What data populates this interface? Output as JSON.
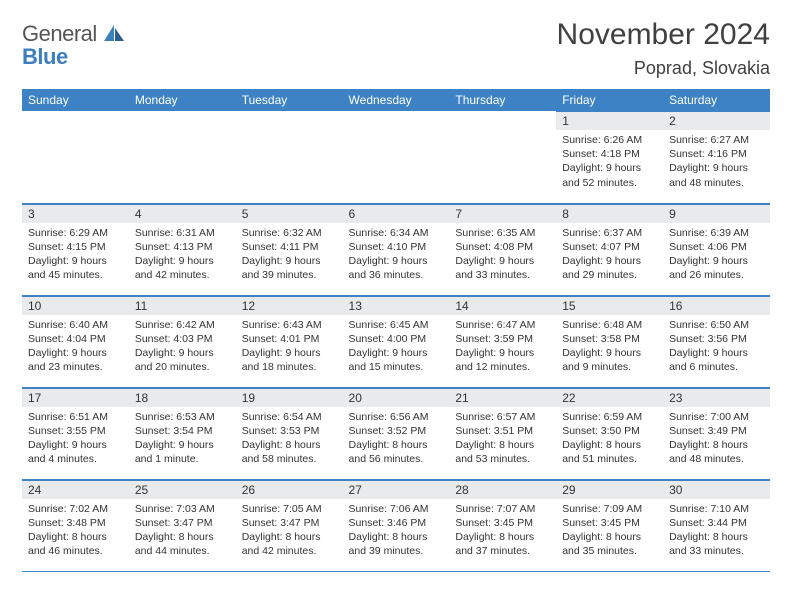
{
  "logo": {
    "line1": "General",
    "line2": "Blue"
  },
  "title": "November 2024",
  "location": "Poprad, Slovakia",
  "colors": {
    "header_bg": "#3c82c4",
    "header_text": "#ffffff",
    "daynum_bg": "#e8eaec",
    "border": "#3c82c4",
    "body_text": "#333333",
    "logo_gray": "#555555",
    "logo_blue": "#3b7fbf"
  },
  "day_headers": [
    "Sunday",
    "Monday",
    "Tuesday",
    "Wednesday",
    "Thursday",
    "Friday",
    "Saturday"
  ],
  "weeks": [
    [
      null,
      null,
      null,
      null,
      null,
      {
        "n": "1",
        "sunrise": "Sunrise: 6:26 AM",
        "sunset": "Sunset: 4:18 PM",
        "daylight": "Daylight: 9 hours and 52 minutes."
      },
      {
        "n": "2",
        "sunrise": "Sunrise: 6:27 AM",
        "sunset": "Sunset: 4:16 PM",
        "daylight": "Daylight: 9 hours and 48 minutes."
      }
    ],
    [
      {
        "n": "3",
        "sunrise": "Sunrise: 6:29 AM",
        "sunset": "Sunset: 4:15 PM",
        "daylight": "Daylight: 9 hours and 45 minutes."
      },
      {
        "n": "4",
        "sunrise": "Sunrise: 6:31 AM",
        "sunset": "Sunset: 4:13 PM",
        "daylight": "Daylight: 9 hours and 42 minutes."
      },
      {
        "n": "5",
        "sunrise": "Sunrise: 6:32 AM",
        "sunset": "Sunset: 4:11 PM",
        "daylight": "Daylight: 9 hours and 39 minutes."
      },
      {
        "n": "6",
        "sunrise": "Sunrise: 6:34 AM",
        "sunset": "Sunset: 4:10 PM",
        "daylight": "Daylight: 9 hours and 36 minutes."
      },
      {
        "n": "7",
        "sunrise": "Sunrise: 6:35 AM",
        "sunset": "Sunset: 4:08 PM",
        "daylight": "Daylight: 9 hours and 33 minutes."
      },
      {
        "n": "8",
        "sunrise": "Sunrise: 6:37 AM",
        "sunset": "Sunset: 4:07 PM",
        "daylight": "Daylight: 9 hours and 29 minutes."
      },
      {
        "n": "9",
        "sunrise": "Sunrise: 6:39 AM",
        "sunset": "Sunset: 4:06 PM",
        "daylight": "Daylight: 9 hours and 26 minutes."
      }
    ],
    [
      {
        "n": "10",
        "sunrise": "Sunrise: 6:40 AM",
        "sunset": "Sunset: 4:04 PM",
        "daylight": "Daylight: 9 hours and 23 minutes."
      },
      {
        "n": "11",
        "sunrise": "Sunrise: 6:42 AM",
        "sunset": "Sunset: 4:03 PM",
        "daylight": "Daylight: 9 hours and 20 minutes."
      },
      {
        "n": "12",
        "sunrise": "Sunrise: 6:43 AM",
        "sunset": "Sunset: 4:01 PM",
        "daylight": "Daylight: 9 hours and 18 minutes."
      },
      {
        "n": "13",
        "sunrise": "Sunrise: 6:45 AM",
        "sunset": "Sunset: 4:00 PM",
        "daylight": "Daylight: 9 hours and 15 minutes."
      },
      {
        "n": "14",
        "sunrise": "Sunrise: 6:47 AM",
        "sunset": "Sunset: 3:59 PM",
        "daylight": "Daylight: 9 hours and 12 minutes."
      },
      {
        "n": "15",
        "sunrise": "Sunrise: 6:48 AM",
        "sunset": "Sunset: 3:58 PM",
        "daylight": "Daylight: 9 hours and 9 minutes."
      },
      {
        "n": "16",
        "sunrise": "Sunrise: 6:50 AM",
        "sunset": "Sunset: 3:56 PM",
        "daylight": "Daylight: 9 hours and 6 minutes."
      }
    ],
    [
      {
        "n": "17",
        "sunrise": "Sunrise: 6:51 AM",
        "sunset": "Sunset: 3:55 PM",
        "daylight": "Daylight: 9 hours and 4 minutes."
      },
      {
        "n": "18",
        "sunrise": "Sunrise: 6:53 AM",
        "sunset": "Sunset: 3:54 PM",
        "daylight": "Daylight: 9 hours and 1 minute."
      },
      {
        "n": "19",
        "sunrise": "Sunrise: 6:54 AM",
        "sunset": "Sunset: 3:53 PM",
        "daylight": "Daylight: 8 hours and 58 minutes."
      },
      {
        "n": "20",
        "sunrise": "Sunrise: 6:56 AM",
        "sunset": "Sunset: 3:52 PM",
        "daylight": "Daylight: 8 hours and 56 minutes."
      },
      {
        "n": "21",
        "sunrise": "Sunrise: 6:57 AM",
        "sunset": "Sunset: 3:51 PM",
        "daylight": "Daylight: 8 hours and 53 minutes."
      },
      {
        "n": "22",
        "sunrise": "Sunrise: 6:59 AM",
        "sunset": "Sunset: 3:50 PM",
        "daylight": "Daylight: 8 hours and 51 minutes."
      },
      {
        "n": "23",
        "sunrise": "Sunrise: 7:00 AM",
        "sunset": "Sunset: 3:49 PM",
        "daylight": "Daylight: 8 hours and 48 minutes."
      }
    ],
    [
      {
        "n": "24",
        "sunrise": "Sunrise: 7:02 AM",
        "sunset": "Sunset: 3:48 PM",
        "daylight": "Daylight: 8 hours and 46 minutes."
      },
      {
        "n": "25",
        "sunrise": "Sunrise: 7:03 AM",
        "sunset": "Sunset: 3:47 PM",
        "daylight": "Daylight: 8 hours and 44 minutes."
      },
      {
        "n": "26",
        "sunrise": "Sunrise: 7:05 AM",
        "sunset": "Sunset: 3:47 PM",
        "daylight": "Daylight: 8 hours and 42 minutes."
      },
      {
        "n": "27",
        "sunrise": "Sunrise: 7:06 AM",
        "sunset": "Sunset: 3:46 PM",
        "daylight": "Daylight: 8 hours and 39 minutes."
      },
      {
        "n": "28",
        "sunrise": "Sunrise: 7:07 AM",
        "sunset": "Sunset: 3:45 PM",
        "daylight": "Daylight: 8 hours and 37 minutes."
      },
      {
        "n": "29",
        "sunrise": "Sunrise: 7:09 AM",
        "sunset": "Sunset: 3:45 PM",
        "daylight": "Daylight: 8 hours and 35 minutes."
      },
      {
        "n": "30",
        "sunrise": "Sunrise: 7:10 AM",
        "sunset": "Sunset: 3:44 PM",
        "daylight": "Daylight: 8 hours and 33 minutes."
      }
    ]
  ]
}
